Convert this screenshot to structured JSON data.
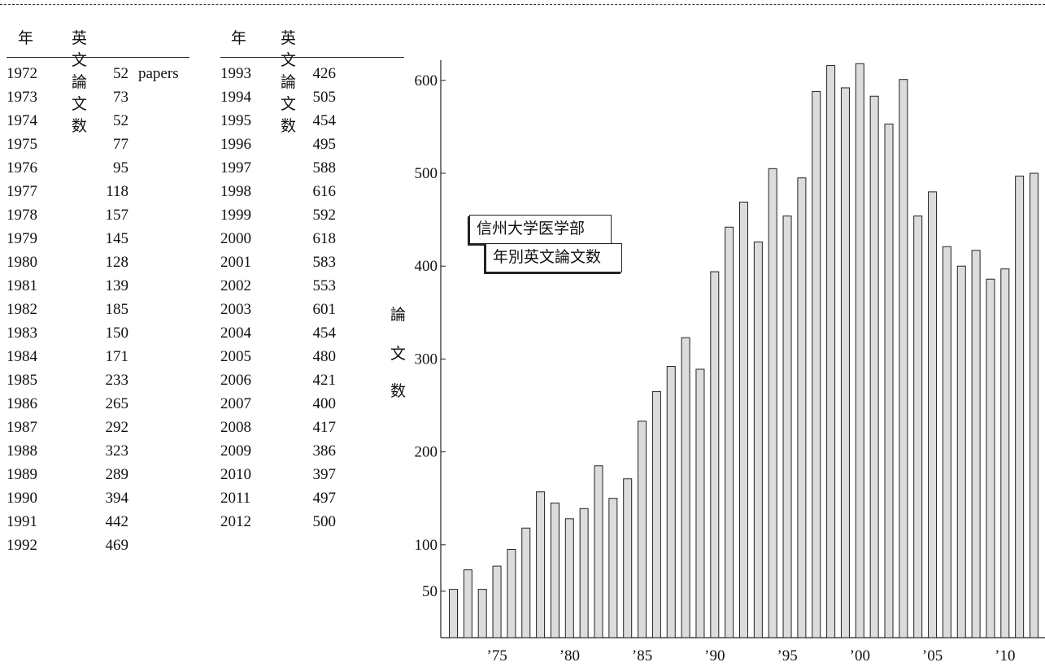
{
  "table": {
    "col_year": "年",
    "col_count": "英文論文数",
    "unit": "papers",
    "left_rows": [
      {
        "year": "1972",
        "count": "52"
      },
      {
        "year": "1973",
        "count": "73"
      },
      {
        "year": "1974",
        "count": "52"
      },
      {
        "year": "1975",
        "count": "77"
      },
      {
        "year": "1976",
        "count": "95"
      },
      {
        "year": "1977",
        "count": "118"
      },
      {
        "year": "1978",
        "count": "157"
      },
      {
        "year": "1979",
        "count": "145"
      },
      {
        "year": "1980",
        "count": "128"
      },
      {
        "year": "1981",
        "count": "139"
      },
      {
        "year": "1982",
        "count": "185"
      },
      {
        "year": "1983",
        "count": "150"
      },
      {
        "year": "1984",
        "count": "171"
      },
      {
        "year": "1985",
        "count": "233"
      },
      {
        "year": "1986",
        "count": "265"
      },
      {
        "year": "1987",
        "count": "292"
      },
      {
        "year": "1988",
        "count": "323"
      },
      {
        "year": "1989",
        "count": "289"
      },
      {
        "year": "1990",
        "count": "394"
      },
      {
        "year": "1991",
        "count": "442"
      },
      {
        "year": "1992",
        "count": "469"
      }
    ],
    "right_rows": [
      {
        "year": "1993",
        "count": "426"
      },
      {
        "year": "1994",
        "count": "505"
      },
      {
        "year": "1995",
        "count": "454"
      },
      {
        "year": "1996",
        "count": "495"
      },
      {
        "year": "1997",
        "count": "588"
      },
      {
        "year": "1998",
        "count": "616"
      },
      {
        "year": "1999",
        "count": "592"
      },
      {
        "year": "2000",
        "count": "618"
      },
      {
        "year": "2001",
        "count": "583"
      },
      {
        "year": "2002",
        "count": "553"
      },
      {
        "year": "2003",
        "count": "601"
      },
      {
        "year": "2004",
        "count": "454"
      },
      {
        "year": "2005",
        "count": "480"
      },
      {
        "year": "2006",
        "count": "421"
      },
      {
        "year": "2007",
        "count": "400"
      },
      {
        "year": "2008",
        "count": "417"
      },
      {
        "year": "2009",
        "count": "386"
      },
      {
        "year": "2010",
        "count": "397"
      },
      {
        "year": "2011",
        "count": "497"
      },
      {
        "year": "2012",
        "count": "500"
      }
    ]
  },
  "annotation": {
    "line1": "信州大学医学部",
    "line2": "年別英文論文数"
  },
  "chart_data": {
    "type": "bar",
    "title": "",
    "xlabel": "",
    "ylabel_chars": [
      "論",
      "文",
      "数"
    ],
    "x": [
      1972,
      1973,
      1974,
      1975,
      1976,
      1977,
      1978,
      1979,
      1980,
      1981,
      1982,
      1983,
      1984,
      1985,
      1986,
      1987,
      1988,
      1989,
      1990,
      1991,
      1992,
      1993,
      1994,
      1995,
      1996,
      1997,
      1998,
      1999,
      2000,
      2001,
      2002,
      2003,
      2004,
      2005,
      2006,
      2007,
      2008,
      2009,
      2010,
      2011,
      2012
    ],
    "values": [
      52,
      73,
      52,
      77,
      95,
      118,
      157,
      145,
      128,
      139,
      185,
      150,
      171,
      233,
      265,
      292,
      323,
      289,
      394,
      442,
      469,
      426,
      505,
      454,
      495,
      588,
      616,
      592,
      618,
      583,
      553,
      601,
      454,
      480,
      421,
      400,
      417,
      386,
      397,
      497,
      500
    ],
    "yticks": [
      50,
      100,
      200,
      300,
      400,
      500,
      600
    ],
    "ytick_labels": [
      "50",
      "100",
      "200",
      "300",
      "400",
      "500",
      "600"
    ],
    "xticks": [
      1975,
      1980,
      1985,
      1990,
      1995,
      2000,
      2005,
      2010
    ],
    "xtick_labels": [
      "’75",
      "’80",
      "’85",
      "’90",
      "’95",
      "’00",
      "’05",
      "’10"
    ],
    "ylim": [
      0,
      620
    ],
    "bar_color": "#dcdcdc",
    "grid": false,
    "legend": "none"
  }
}
